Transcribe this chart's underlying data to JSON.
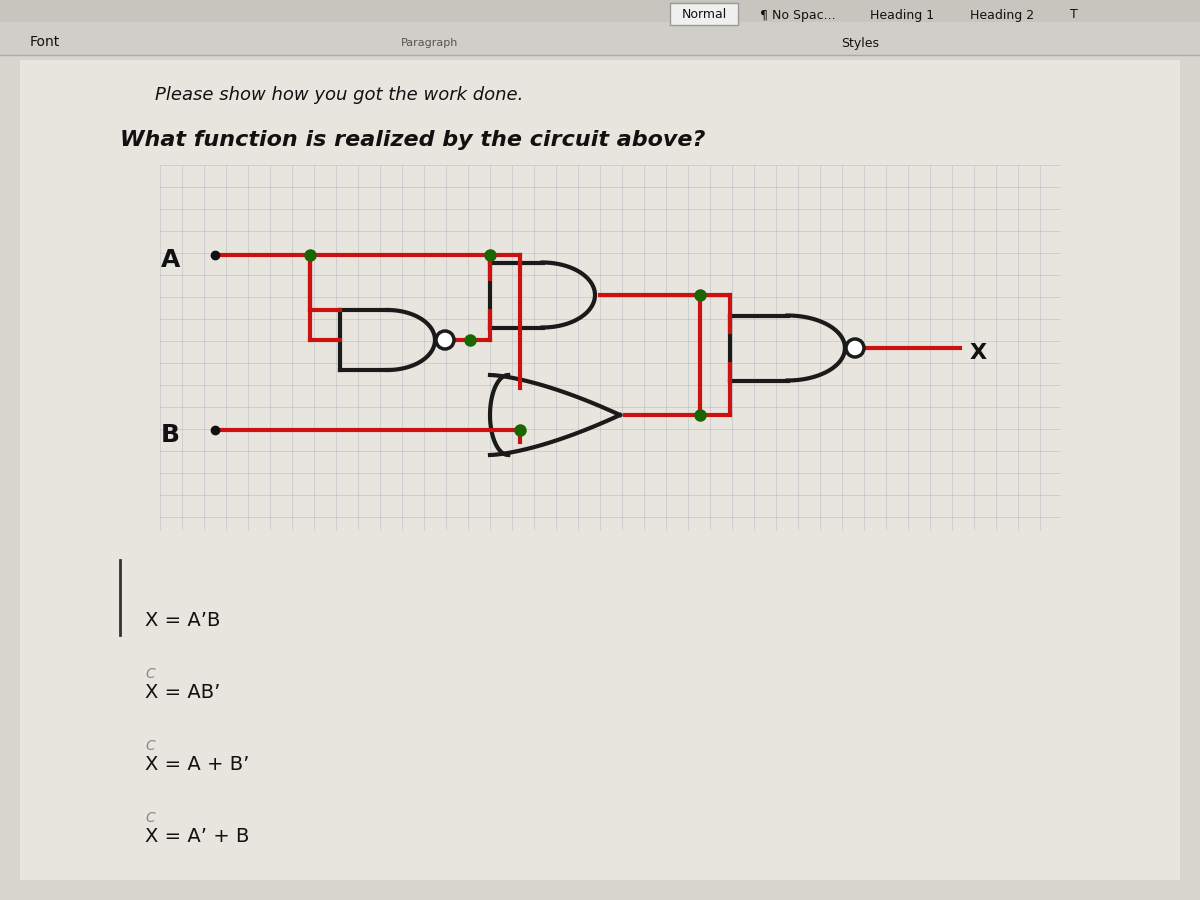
{
  "bg_color": "#8a8a8a",
  "page_bg": "#e0ddd8",
  "toolbar_bg": "#dcdcdc",
  "wire_color": "#cc1111",
  "gate_outline": "#1a1a1a",
  "dot_color": "#1a6600",
  "text_color": "#111111",
  "grid_color": "#99aabb",
  "text_line1": "Please show how you got the work done.",
  "text_line2": "What function is realized by the circuit above?",
  "label_A": "A",
  "label_B": "B",
  "label_X": "X",
  "answers": [
    "X = A’B",
    "X = AB’",
    "X = A + B’",
    "X = A’ + B"
  ],
  "toolbar_labels": [
    "Font",
    "¶ No Spac...",
    "Heading 1",
    "Heading 2",
    "Styles"
  ]
}
